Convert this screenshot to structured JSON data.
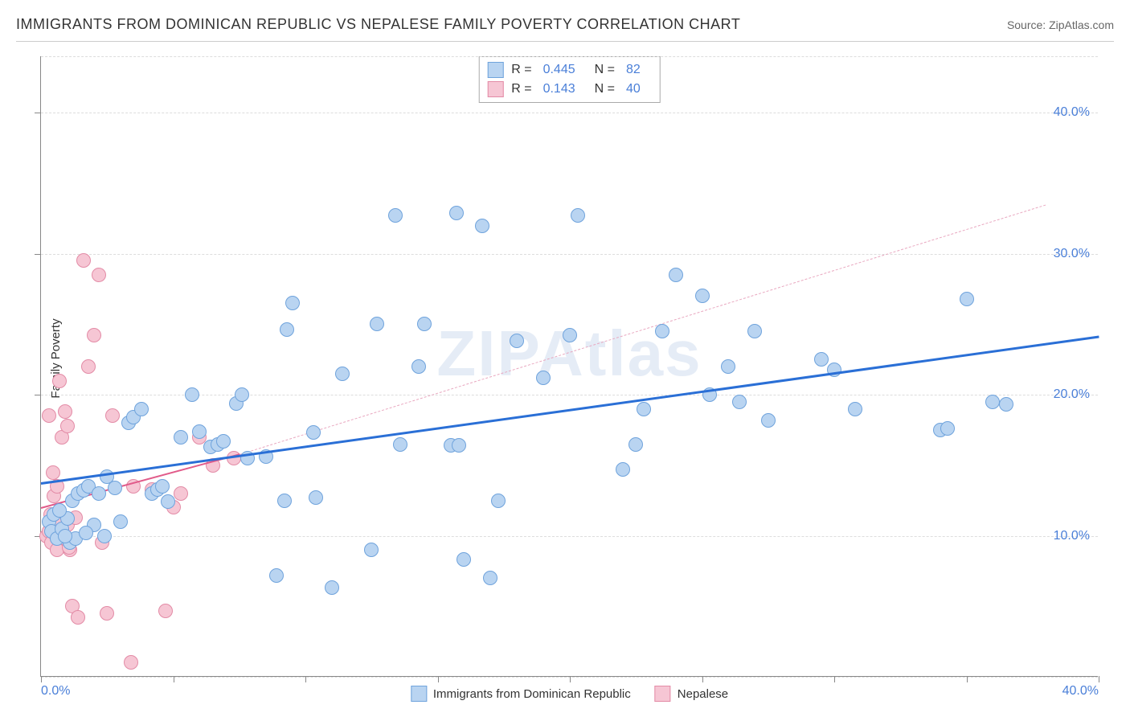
{
  "title": "IMMIGRANTS FROM DOMINICAN REPUBLIC VS NEPALESE FAMILY POVERTY CORRELATION CHART",
  "source_label": "Source: ",
  "source_name": "ZipAtlas.com",
  "watermark": "ZIPAtlas",
  "y_axis_title": "Family Poverty",
  "chart": {
    "type": "scatter",
    "xlim": [
      0,
      40
    ],
    "ylim": [
      0,
      44
    ],
    "x_ticks": [
      0,
      5,
      10,
      15,
      20,
      25,
      30,
      35,
      40
    ],
    "x_tick_labels": {
      "0": "0.0%",
      "40": "40.0%"
    },
    "y_ticks": [
      10,
      20,
      30,
      40
    ],
    "y_tick_labels": {
      "10": "10.0%",
      "20": "20.0%",
      "30": "30.0%",
      "40": "40.0%"
    },
    "y_gridlines": [
      0,
      10,
      20,
      30,
      40,
      44
    ],
    "background_color": "#ffffff",
    "grid_color": "#dddddd",
    "axis_color": "#888888",
    "tick_label_color": "#4a7fd8",
    "tick_label_fontsize": 16,
    "point_radius": 9,
    "point_stroke_width": 1
  },
  "series": [
    {
      "name": "Immigrants from Dominican Republic",
      "fill": "#b9d4f1",
      "stroke": "#6fa3dc",
      "R_label": "R =",
      "R": "0.445",
      "N_label": "N =",
      "N": "82",
      "trend": {
        "x1": 0,
        "y1": 13.8,
        "x2": 40,
        "y2": 24.2,
        "color": "#2a6fd6",
        "width": 3,
        "dash": false
      },
      "extrapolate": null,
      "points": [
        [
          0.3,
          11
        ],
        [
          0.4,
          10.3
        ],
        [
          0.5,
          11.5
        ],
        [
          0.6,
          9.8
        ],
        [
          0.8,
          10.5
        ],
        [
          1.0,
          11.2
        ],
        [
          1.2,
          12.5
        ],
        [
          1.4,
          13.0
        ],
        [
          1.6,
          13.2
        ],
        [
          1.8,
          13.5
        ],
        [
          2.0,
          10.8
        ],
        [
          2.2,
          13.0
        ],
        [
          2.5,
          14.2
        ],
        [
          2.8,
          13.4
        ],
        [
          3.0,
          11.0
        ],
        [
          3.3,
          18.0
        ],
        [
          3.5,
          18.4
        ],
        [
          3.8,
          19.0
        ],
        [
          4.2,
          13.0
        ],
        [
          4.4,
          13.3
        ],
        [
          4.8,
          12.4
        ],
        [
          5.3,
          17.0
        ],
        [
          5.7,
          20.0
        ],
        [
          6.0,
          17.4
        ],
        [
          6.4,
          16.3
        ],
        [
          6.7,
          16.5
        ],
        [
          6.9,
          16.7
        ],
        [
          7.4,
          19.4
        ],
        [
          7.6,
          20.0
        ],
        [
          7.8,
          15.5
        ],
        [
          8.5,
          15.6
        ],
        [
          8.9,
          7.2
        ],
        [
          9.2,
          12.5
        ],
        [
          9.3,
          24.6
        ],
        [
          9.5,
          26.5
        ],
        [
          10.3,
          17.3
        ],
        [
          10.4,
          12.7
        ],
        [
          11.0,
          6.3
        ],
        [
          11.4,
          21.5
        ],
        [
          12.5,
          9.0
        ],
        [
          12.7,
          25.0
        ],
        [
          13.4,
          32.7
        ],
        [
          13.6,
          16.5
        ],
        [
          14.3,
          22.0
        ],
        [
          14.5,
          25.0
        ],
        [
          15.5,
          16.4
        ],
        [
          15.7,
          32.9
        ],
        [
          15.8,
          16.4
        ],
        [
          16.0,
          8.3
        ],
        [
          16.7,
          32.0
        ],
        [
          17.0,
          7.0
        ],
        [
          17.3,
          12.5
        ],
        [
          18.0,
          23.8
        ],
        [
          19.0,
          21.2
        ],
        [
          20.0,
          24.2
        ],
        [
          20.3,
          32.7
        ],
        [
          22.0,
          14.7
        ],
        [
          22.5,
          16.5
        ],
        [
          22.8,
          19.0
        ],
        [
          23.5,
          24.5
        ],
        [
          24.0,
          28.5
        ],
        [
          25.0,
          27.0
        ],
        [
          25.3,
          20.0
        ],
        [
          26.0,
          22.0
        ],
        [
          26.4,
          19.5
        ],
        [
          27.0,
          24.5
        ],
        [
          27.5,
          18.2
        ],
        [
          29.5,
          22.5
        ],
        [
          30.0,
          21.8
        ],
        [
          30.8,
          19.0
        ],
        [
          34.0,
          17.5
        ],
        [
          34.3,
          17.6
        ],
        [
          35.0,
          26.8
        ],
        [
          36.0,
          19.5
        ],
        [
          36.5,
          19.3
        ],
        [
          1.1,
          9.5
        ],
        [
          1.3,
          9.8
        ],
        [
          1.7,
          10.2
        ],
        [
          2.4,
          10.0
        ],
        [
          0.9,
          10.0
        ],
        [
          0.7,
          11.8
        ],
        [
          4.6,
          13.5
        ]
      ]
    },
    {
      "name": "Nepalese",
      "fill": "#f6c6d4",
      "stroke": "#e38ba6",
      "R_label": "R =",
      "R": "0.143",
      "N_label": "N =",
      "N": "40",
      "trend": {
        "x1": 0,
        "y1": 12.0,
        "x2": 7.5,
        "y2": 15.8,
        "color": "#e15b8a",
        "width": 2,
        "dash": false
      },
      "extrapolate": {
        "x1": 7.5,
        "y1": 15.8,
        "x2": 38,
        "y2": 33.5,
        "color": "#e9a8c0",
        "width": 1,
        "dash": true
      },
      "points": [
        [
          0.2,
          10.0
        ],
        [
          0.3,
          10.3
        ],
        [
          0.3,
          18.5
        ],
        [
          0.4,
          9.5
        ],
        [
          0.4,
          11.0
        ],
        [
          0.5,
          12.8
        ],
        [
          0.5,
          10.2
        ],
        [
          0.6,
          9.0
        ],
        [
          0.6,
          13.5
        ],
        [
          0.7,
          21.0
        ],
        [
          0.8,
          10.5
        ],
        [
          0.8,
          17.0
        ],
        [
          0.9,
          9.8
        ],
        [
          0.9,
          18.8
        ],
        [
          1.0,
          17.8
        ],
        [
          1.0,
          10.8
        ],
        [
          1.1,
          9.0
        ],
        [
          1.2,
          5.0
        ],
        [
          1.3,
          11.3
        ],
        [
          1.4,
          4.2
        ],
        [
          1.6,
          29.5
        ],
        [
          1.8,
          22.0
        ],
        [
          2.0,
          24.2
        ],
        [
          2.2,
          28.5
        ],
        [
          2.3,
          9.5
        ],
        [
          2.5,
          4.5
        ],
        [
          2.7,
          18.5
        ],
        [
          3.4,
          1.0
        ],
        [
          3.5,
          13.5
        ],
        [
          4.2,
          13.3
        ],
        [
          4.7,
          4.7
        ],
        [
          5.0,
          12.0
        ],
        [
          5.3,
          13.0
        ],
        [
          6.0,
          17.0
        ],
        [
          6.5,
          15.0
        ],
        [
          7.3,
          15.5
        ],
        [
          0.35,
          11.5
        ],
        [
          0.55,
          11.0
        ],
        [
          1.05,
          9.2
        ],
        [
          0.45,
          14.5
        ]
      ]
    }
  ],
  "legend_bottom": [
    {
      "label": "Immigrants from Dominican Republic",
      "fill": "#b9d4f1",
      "stroke": "#6fa3dc"
    },
    {
      "label": "Nepalese",
      "fill": "#f6c6d4",
      "stroke": "#e38ba6"
    }
  ]
}
